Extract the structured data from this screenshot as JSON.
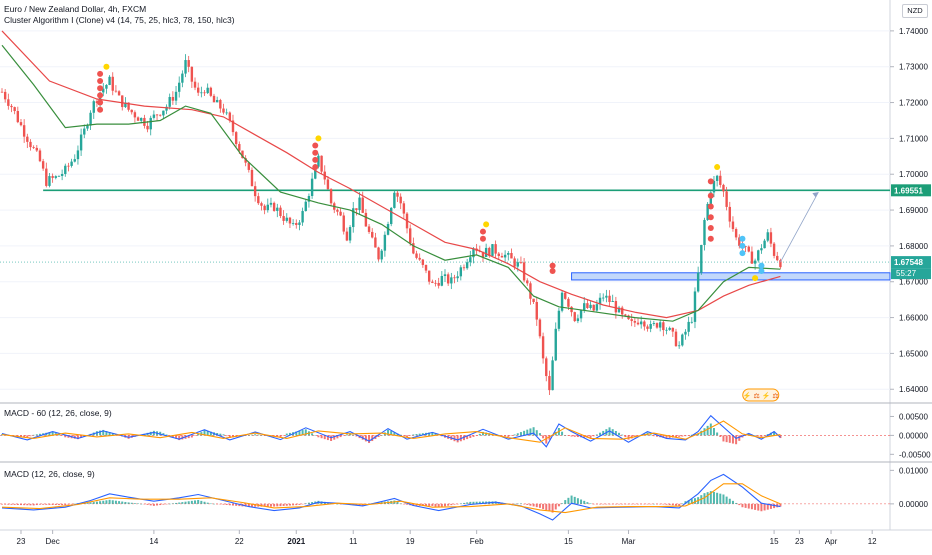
{
  "header": {
    "title": "Euro / New Zealand Dollar, 4h, FXCM",
    "indicator": "Cluster Algorithm I (Clone) v4 (14, 75, 25, hlc3, 78, 150, hlc3)"
  },
  "currency_button": "NZD",
  "macd1_label": "MACD - 60 (12, 26, close, 9)",
  "macd2_label": "MACD (12, 26, close, 9)",
  "badge_text": "⚡ ⚖ ⚡ ⚖",
  "colors": {
    "up": "#26a69a",
    "down": "#ef5350",
    "ema_red": "#e84848",
    "ema_green": "#388e3c",
    "hline": "#1b9e77",
    "zone_fill": "#aecbfa",
    "zone_border": "#2962ff",
    "price_tag": "#26a69a",
    "macd_blue": "#2962ff",
    "macd_orange": "#ff9800"
  },
  "chart_data": [
    {
      "type": "candlestick",
      "title": "Euro / New Zealand Dollar, 4h, FXCM",
      "y_ticks": [
        "1.74000",
        "1.73000",
        "1.72000",
        "1.71000",
        "1.70000",
        "1.69000",
        "1.68000",
        "1.67000",
        "1.66000",
        "1.65000",
        "1.64000"
      ],
      "x_ticks": [
        "23",
        "Dec",
        "14",
        "22",
        "2021",
        "11",
        "19",
        "Feb",
        "15",
        "Mar",
        "15",
        "23",
        "Apr",
        "12"
      ],
      "ylim": [
        1.637,
        1.7475
      ],
      "last_price": "1.67548",
      "countdown": "55:27",
      "horizontal_line": {
        "value": 1.69551,
        "label": "1.69551"
      },
      "support_zone": {
        "low": 1.6705,
        "high": 1.6725
      },
      "price_path": [
        [
          0,
          1.723
        ],
        [
          3,
          1.719
        ],
        [
          6,
          1.7135
        ],
        [
          9,
          1.7085
        ],
        [
          12,
          1.7035
        ],
        [
          14,
          1.698
        ],
        [
          17,
          1.699
        ],
        [
          20,
          1.701
        ],
        [
          23,
          1.705
        ],
        [
          26,
          1.712
        ],
        [
          28,
          1.718
        ],
        [
          31,
          1.723
        ],
        [
          34,
          1.726
        ],
        [
          37,
          1.721
        ],
        [
          40,
          1.718
        ],
        [
          43,
          1.716
        ],
        [
          46,
          1.714
        ],
        [
          49,
          1.717
        ],
        [
          52,
          1.719
        ],
        [
          55,
          1.723
        ],
        [
          58,
          1.731
        ],
        [
          60,
          1.726
        ],
        [
          62,
          1.722
        ],
        [
          64,
          1.724
        ],
        [
          67,
          1.72
        ],
        [
          70,
          1.718
        ],
        [
          73,
          1.712
        ],
        [
          76,
          1.705
        ],
        [
          78,
          1.7
        ],
        [
          80,
          1.695
        ],
        [
          83,
          1.69
        ],
        [
          86,
          1.691
        ],
        [
          89,
          1.688
        ],
        [
          92,
          1.685
        ],
        [
          95,
          1.689
        ],
        [
          98,
          1.698
        ],
        [
          100,
          1.704
        ],
        [
          102,
          1.699
        ],
        [
          104,
          1.692
        ],
        [
          107,
          1.688
        ],
        [
          109,
          1.683
        ],
        [
          111,
          1.69
        ],
        [
          113,
          1.692
        ],
        [
          115,
          1.686
        ],
        [
          117,
          1.681
        ],
        [
          119,
          1.677
        ],
        [
          121,
          1.683
        ],
        [
          124,
          1.696
        ],
        [
          126,
          1.692
        ],
        [
          128,
          1.685
        ],
        [
          130,
          1.678
        ],
        [
          133,
          1.674
        ],
        [
          136,
          1.669
        ],
        [
          139,
          1.671
        ],
        [
          142,
          1.67
        ],
        [
          146,
          1.675
        ],
        [
          149,
          1.68
        ],
        [
          152,
          1.678
        ],
        [
          155,
          1.679
        ],
        [
          158,
          1.678
        ],
        [
          161,
          1.676
        ],
        [
          164,
          1.674
        ],
        [
          167,
          1.666
        ],
        [
          169,
          1.66
        ],
        [
          171,
          1.648
        ],
        [
          173,
          1.639
        ],
        [
          175,
          1.656
        ],
        [
          177,
          1.668
        ],
        [
          179,
          1.664
        ],
        [
          181,
          1.66
        ],
        [
          184,
          1.663
        ],
        [
          187,
          1.662
        ],
        [
          190,
          1.666
        ],
        [
          193,
          1.664
        ],
        [
          196,
          1.66
        ],
        [
          199,
          1.658
        ],
        [
          202,
          1.66
        ],
        [
          205,
          1.657
        ],
        [
          208,
          1.659
        ],
        [
          211,
          1.656
        ],
        [
          214,
          1.652
        ],
        [
          216,
          1.656
        ],
        [
          218,
          1.66
        ],
        [
          220,
          1.672
        ],
        [
          222,
          1.687
        ],
        [
          224,
          1.696
        ],
        [
          226,
          1.699
        ],
        [
          228,
          1.695
        ],
        [
          230,
          1.688
        ],
        [
          232,
          1.682
        ],
        [
          234,
          1.68
        ],
        [
          236,
          1.677
        ],
        [
          238,
          1.676
        ],
        [
          240,
          1.68
        ],
        [
          242,
          1.683
        ],
        [
          244,
          1.678
        ],
        [
          246,
          1.6755
        ]
      ],
      "ema_red": [
        [
          0,
          1.74
        ],
        [
          15,
          1.726
        ],
        [
          30,
          1.721
        ],
        [
          45,
          1.719
        ],
        [
          60,
          1.718
        ],
        [
          70,
          1.716
        ],
        [
          80,
          1.711
        ],
        [
          90,
          1.706
        ],
        [
          100,
          1.7005
        ],
        [
          110,
          1.696
        ],
        [
          120,
          1.691
        ],
        [
          130,
          1.686
        ],
        [
          140,
          1.681
        ],
        [
          150,
          1.679
        ],
        [
          160,
          1.675
        ],
        [
          170,
          1.67
        ],
        [
          180,
          1.6665
        ],
        [
          190,
          1.6635
        ],
        [
          200,
          1.6615
        ],
        [
          210,
          1.66
        ],
        [
          220,
          1.662
        ],
        [
          228,
          1.666
        ],
        [
          236,
          1.669
        ],
        [
          246,
          1.6715
        ]
      ],
      "ema_green": [
        [
          0,
          1.736
        ],
        [
          10,
          1.725
        ],
        [
          20,
          1.713
        ],
        [
          30,
          1.714
        ],
        [
          40,
          1.714
        ],
        [
          50,
          1.715
        ],
        [
          58,
          1.719
        ],
        [
          66,
          1.717
        ],
        [
          76,
          1.705
        ],
        [
          88,
          1.695
        ],
        [
          100,
          1.692
        ],
        [
          110,
          1.69
        ],
        [
          120,
          1.686
        ],
        [
          130,
          1.68
        ],
        [
          140,
          1.676
        ],
        [
          150,
          1.6775
        ],
        [
          160,
          1.674
        ],
        [
          168,
          1.666
        ],
        [
          176,
          1.663
        ],
        [
          188,
          1.6615
        ],
        [
          200,
          1.66
        ],
        [
          212,
          1.659
        ],
        [
          220,
          1.662
        ],
        [
          228,
          1.67
        ],
        [
          236,
          1.674
        ],
        [
          246,
          1.6735
        ]
      ],
      "signal_clusters": [
        {
          "bar": 31,
          "color": "#ef5350",
          "prices": [
            1.718,
            1.72,
            1.722,
            1.724,
            1.726,
            1.728
          ]
        },
        {
          "bar": 33,
          "color": "#ffd600",
          "prices": [
            1.73
          ]
        },
        {
          "bar": 99,
          "color": "#ef5350",
          "prices": [
            1.702,
            1.704,
            1.706,
            1.708
          ]
        },
        {
          "bar": 100,
          "color": "#ffd600",
          "prices": [
            1.71
          ]
        },
        {
          "bar": 152,
          "color": "#ef5350",
          "prices": [
            1.682,
            1.684
          ]
        },
        {
          "bar": 153,
          "color": "#ffd600",
          "prices": [
            1.686
          ]
        },
        {
          "bar": 174,
          "color": "#ef5350",
          "prices": [
            1.673,
            1.6745
          ]
        },
        {
          "bar": 224,
          "color": "#ef5350",
          "prices": [
            1.682,
            1.685,
            1.688,
            1.691,
            1.694,
            1.698
          ]
        },
        {
          "bar": 226,
          "color": "#ffd600",
          "prices": [
            1.702
          ]
        },
        {
          "bar": 234,
          "color": "#4fc3f7",
          "prices": [
            1.678,
            1.68,
            1.682
          ]
        },
        {
          "bar": 240,
          "color": "#4fc3f7",
          "prices": [
            1.673,
            1.6745
          ]
        },
        {
          "bar": 238,
          "color": "#ffd600",
          "prices": [
            1.671
          ]
        }
      ],
      "projection": {
        "from": [
          246,
          1.6755
        ],
        "to": [
          258,
          1.695
        ]
      }
    },
    {
      "type": "bar+line",
      "title": "MACD - 60 (12, 26, close, 9)",
      "y_ticks": [
        "0.00500",
        "0.00000",
        "-0.00500"
      ],
      "ylim": [
        -0.0065,
        0.0075
      ],
      "macd": [
        [
          0,
          0.0005
        ],
        [
          8,
          -0.0012
        ],
        [
          16,
          0.001
        ],
        [
          24,
          -0.0008
        ],
        [
          32,
          0.0012
        ],
        [
          40,
          -0.0005
        ],
        [
          48,
          0.0008
        ],
        [
          56,
          -0.001
        ],
        [
          64,
          0.0015
        ],
        [
          72,
          -0.0012
        ],
        [
          80,
          0.0009
        ],
        [
          88,
          -0.0011
        ],
        [
          96,
          0.002
        ],
        [
          104,
          -0.0006
        ],
        [
          110,
          0.001
        ],
        [
          116,
          -0.0015
        ],
        [
          122,
          0.0018
        ],
        [
          128,
          -0.001
        ],
        [
          136,
          0.0008
        ],
        [
          144,
          -0.0012
        ],
        [
          152,
          0.0016
        ],
        [
          160,
          -0.001
        ],
        [
          168,
          0.0006
        ],
        [
          172,
          -0.003
        ],
        [
          176,
          0.003
        ],
        [
          180,
          0.001
        ],
        [
          186,
          -0.0015
        ],
        [
          192,
          0.0012
        ],
        [
          198,
          -0.0018
        ],
        [
          204,
          0.001
        ],
        [
          210,
          -0.0008
        ],
        [
          216,
          -0.0012
        ],
        [
          220,
          0.001
        ],
        [
          224,
          0.0052
        ],
        [
          228,
          0.0022
        ],
        [
          232,
          -0.0008
        ],
        [
          236,
          0.0005
        ],
        [
          240,
          -0.001
        ],
        [
          244,
          0.001
        ],
        [
          246,
          -0.0005
        ]
      ],
      "signal": [
        [
          0,
          0.0002
        ],
        [
          10,
          -0.0008
        ],
        [
          20,
          0.0006
        ],
        [
          30,
          -0.0004
        ],
        [
          40,
          0.0004
        ],
        [
          50,
          -0.0006
        ],
        [
          60,
          0.0008
        ],
        [
          70,
          -0.0008
        ],
        [
          80,
          0.0006
        ],
        [
          90,
          -0.0008
        ],
        [
          100,
          0.0012
        ],
        [
          110,
          0.0004
        ],
        [
          120,
          0.0006
        ],
        [
          130,
          -0.0008
        ],
        [
          140,
          0.0004
        ],
        [
          150,
          0.001
        ],
        [
          160,
          -0.0006
        ],
        [
          170,
          -0.0018
        ],
        [
          178,
          0.002
        ],
        [
          186,
          -0.0008
        ],
        [
          196,
          -0.001
        ],
        [
          206,
          0.0006
        ],
        [
          216,
          -0.001
        ],
        [
          222,
          0.0012
        ],
        [
          228,
          0.0038
        ],
        [
          234,
          0.0004
        ],
        [
          240,
          -0.0006
        ],
        [
          246,
          0.0002
        ]
      ]
    },
    {
      "type": "bar+line",
      "title": "MACD (12, 26, close, 9)",
      "y_ticks": [
        "0.01000",
        "0.00000"
      ],
      "ylim": [
        -0.0072,
        0.0113
      ],
      "macd": [
        [
          0,
          -0.0012
        ],
        [
          10,
          -0.0018
        ],
        [
          20,
          -0.001
        ],
        [
          28,
          0.001
        ],
        [
          34,
          0.003
        ],
        [
          40,
          0.002
        ],
        [
          48,
          0.0008
        ],
        [
          56,
          0.0018
        ],
        [
          62,
          0.0028
        ],
        [
          70,
          0.001
        ],
        [
          78,
          -0.0008
        ],
        [
          86,
          -0.002
        ],
        [
          94,
          -0.0012
        ],
        [
          100,
          0.0005
        ],
        [
          106,
          0.0002
        ],
        [
          114,
          -0.0006
        ],
        [
          124,
          0.0016
        ],
        [
          130,
          -0.0005
        ],
        [
          138,
          -0.002
        ],
        [
          148,
          -0.0002
        ],
        [
          156,
          0.0005
        ],
        [
          164,
          -0.0006
        ],
        [
          170,
          -0.003
        ],
        [
          174,
          -0.0048
        ],
        [
          180,
          0.0002
        ],
        [
          186,
          -0.0012
        ],
        [
          196,
          -0.001
        ],
        [
          206,
          -0.0008
        ],
        [
          214,
          -0.0012
        ],
        [
          220,
          0.003
        ],
        [
          224,
          0.007
        ],
        [
          228,
          0.0088
        ],
        [
          234,
          0.005
        ],
        [
          240,
          0.0002
        ],
        [
          246,
          -0.0008
        ]
      ],
      "signal": [
        [
          0,
          -0.001
        ],
        [
          12,
          -0.0014
        ],
        [
          24,
          -0.0002
        ],
        [
          34,
          0.0018
        ],
        [
          44,
          0.0014
        ],
        [
          56,
          0.0014
        ],
        [
          66,
          0.0018
        ],
        [
          76,
          0.0004
        ],
        [
          86,
          -0.0012
        ],
        [
          96,
          -0.0008
        ],
        [
          106,
          0.0002
        ],
        [
          116,
          -0.0002
        ],
        [
          126,
          0.0008
        ],
        [
          136,
          -0.001
        ],
        [
          148,
          -0.0008
        ],
        [
          160,
          0.0
        ],
        [
          170,
          -0.0018
        ],
        [
          178,
          -0.0026
        ],
        [
          188,
          -0.001
        ],
        [
          198,
          -0.0008
        ],
        [
          208,
          -0.0008
        ],
        [
          216,
          -0.0006
        ],
        [
          222,
          0.0018
        ],
        [
          228,
          0.006
        ],
        [
          234,
          0.006
        ],
        [
          240,
          0.0024
        ],
        [
          246,
          0.0
        ]
      ]
    }
  ]
}
